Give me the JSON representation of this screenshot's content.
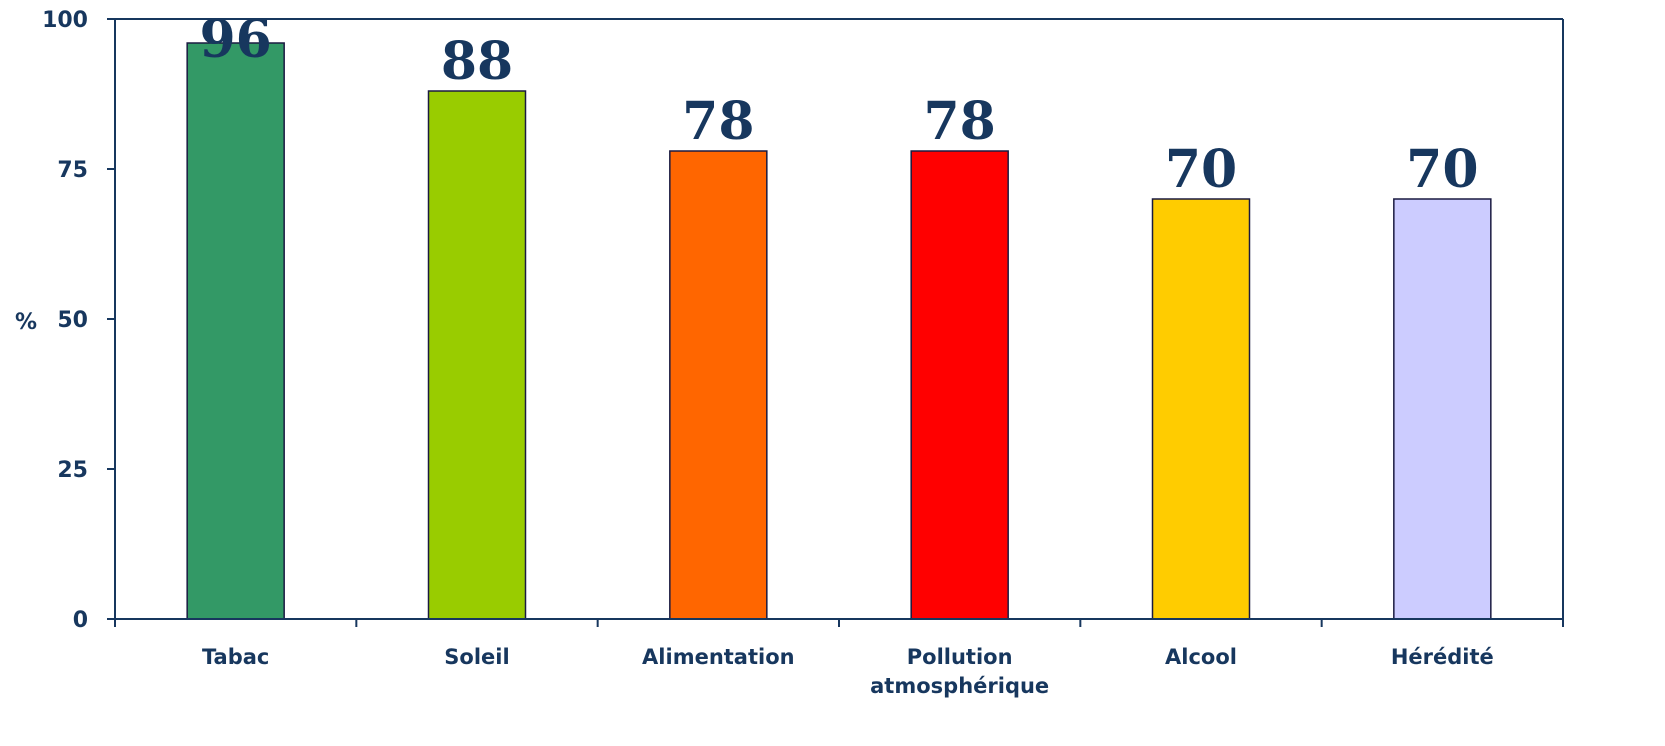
{
  "chart_data": {
    "type": "bar",
    "ylabel": "%",
    "xlabel": "",
    "ylim": [
      0,
      100
    ],
    "yticks": [
      "0",
      "25",
      "50",
      "75",
      "100"
    ],
    "categories": [
      "Tabac",
      "Soleil",
      "Alimentation",
      "Pollution atmosphérique",
      "Alcool",
      "Hérédité"
    ],
    "category_lines": [
      [
        "Tabac"
      ],
      [
        "Soleil"
      ],
      [
        "Alimentation"
      ],
      [
        "Pollution",
        "atmosphérique"
      ],
      [
        "Alcool"
      ],
      [
        "Hérédité"
      ]
    ],
    "values": [
      96,
      88,
      78,
      78,
      70,
      70
    ],
    "data_labels": [
      "96",
      "88",
      "78",
      "78",
      "70",
      "70"
    ],
    "colors": [
      "#339966",
      "#99CC00",
      "#FF6600",
      "#FF0000",
      "#FFCC00",
      "#CCCCFF"
    ],
    "axis_color": "#17375E",
    "grid": false,
    "legend": "none"
  }
}
